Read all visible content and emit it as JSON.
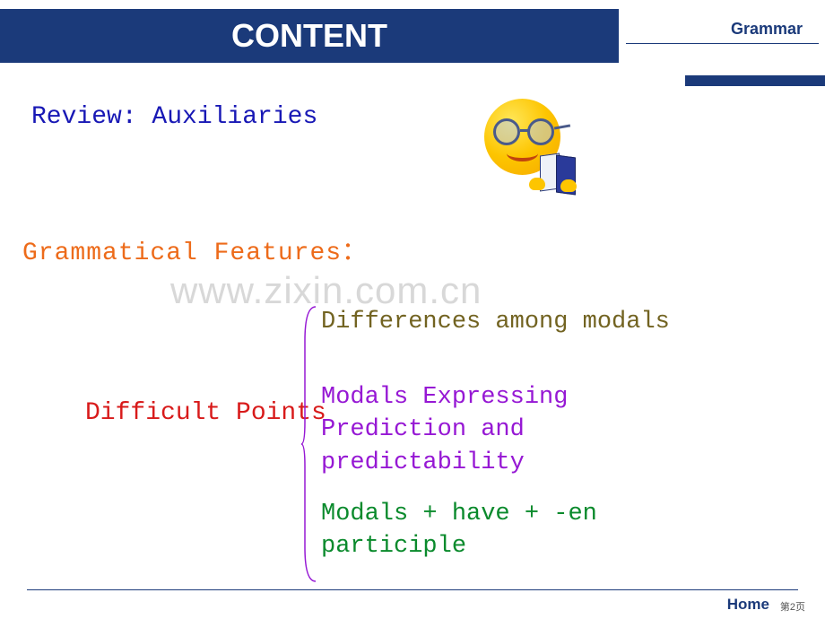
{
  "header": {
    "title": "CONTENT",
    "right_label": "Grammar",
    "bar_color": "#1b3a7a",
    "title_color": "#ffffff",
    "title_fontsize": 36,
    "right_label_color": "#1b3a7a",
    "right_label_fontsize": 18
  },
  "review": {
    "text": "Review: Auxiliaries",
    "color": "#1818b5",
    "fontsize": 28
  },
  "features": {
    "text": "Grammatical Features：",
    "color": "#ed6b1a",
    "fontsize": 28
  },
  "watermark": {
    "text": "www.zixin.com.cn",
    "color": "#d8d8d8",
    "fontsize": 42
  },
  "difficult": {
    "label": "Difficult Points",
    "label_color": "#d81a1a",
    "label_fontsize": 28,
    "items": [
      {
        "text": "Differences among modals",
        "color": "#726321"
      },
      {
        "text": "Modals Expressing\nPrediction and\npredictability",
        "color": "#9618d4"
      },
      {
        "text": "Modals + have + -en\nparticiple",
        "color": "#0a8a2c"
      }
    ],
    "item_fontsize": 27,
    "brace_color": "#9618d4"
  },
  "smiley": {
    "face_color": "#fdc500",
    "glasses_color": "#4a5a8a",
    "book_color": "#2a3a9a"
  },
  "footer": {
    "home": "Home",
    "page": "第2页",
    "line_color": "#1b3a7a",
    "home_color": "#1b3a7a"
  }
}
